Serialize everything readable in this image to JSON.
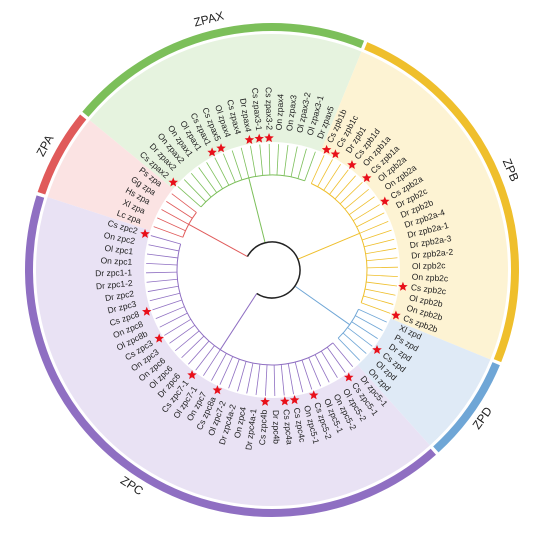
{
  "clades": [
    {
      "label": "ZPA",
      "color": "#e05a5a",
      "tint": "#fbe3e3",
      "leaves": [
        {
          "name": "Lc zpa",
          "star": false
        },
        {
          "name": "Xl zpa",
          "star": false
        },
        {
          "name": "Hs zpa",
          "star": false
        },
        {
          "name": "Gg zpa",
          "star": false
        },
        {
          "name": "Ps zpa",
          "star": false
        }
      ]
    },
    {
      "label": "ZPAX",
      "color": "#7cbf5a",
      "tint": "#e6f3df",
      "leaves": [
        {
          "name": "Cs zpax2",
          "star": true
        },
        {
          "name": "Dr zpax2",
          "star": false
        },
        {
          "name": "On zpax2",
          "star": false
        },
        {
          "name": "On zpax1",
          "star": false
        },
        {
          "name": "Ol zpax1",
          "star": false
        },
        {
          "name": "Cs zpax1",
          "star": true
        },
        {
          "name": "Cs zpax5",
          "star": true
        },
        {
          "name": "Ol zpax4",
          "star": false
        },
        {
          "name": "Cs zpax4",
          "star": false
        },
        {
          "name": "Dr zpax4",
          "star": true
        },
        {
          "name": "Cs zpax3-1",
          "star": true
        },
        {
          "name": "Cs zpax3-2",
          "star": true
        },
        {
          "name": "On zpax4",
          "star": false
        },
        {
          "name": "On zpax3",
          "star": false
        },
        {
          "name": "Ol zpax3-2",
          "star": false
        },
        {
          "name": "Ol zpax3-1",
          "star": false
        },
        {
          "name": "Dr zpax5",
          "star": false
        }
      ]
    },
    {
      "label": "ZPB",
      "color": "#efbf2c",
      "tint": "#fdf3d3",
      "leaves": [
        {
          "name": "Cs zpb1b",
          "star": true
        },
        {
          "name": "Cs zpb1c",
          "star": true
        },
        {
          "name": "Dr zpb1",
          "star": false
        },
        {
          "name": "Cs zpb1d",
          "star": true
        },
        {
          "name": "On zpb1a",
          "star": false
        },
        {
          "name": "Cs zpb1a",
          "star": true
        },
        {
          "name": "Ol zpb2a",
          "star": false
        },
        {
          "name": "On zpb2a",
          "star": false
        },
        {
          "name": "Cs zpb2a",
          "star": true
        },
        {
          "name": "Dr zpb2c",
          "star": false
        },
        {
          "name": "Dr zpb2b",
          "star": false
        },
        {
          "name": "Dr zpb2a-4",
          "star": false
        },
        {
          "name": "Dr zpb2a-1",
          "star": false
        },
        {
          "name": "Dr zpb2a-3",
          "star": false
        },
        {
          "name": "Dr zpb2a-2",
          "star": false
        },
        {
          "name": "Ol zpb2c",
          "star": false
        },
        {
          "name": "On zpb2c",
          "star": false
        },
        {
          "name": "Cs zpb2c",
          "star": true
        },
        {
          "name": "Ol zpb2b",
          "star": false
        },
        {
          "name": "On zpb2b",
          "star": false
        },
        {
          "name": "Cs zpb2b",
          "star": true
        }
      ]
    },
    {
      "label": "ZPD",
      "color": "#6fa6d6",
      "tint": "#dfeaf6",
      "leaves": [
        {
          "name": "Xl zpd",
          "star": false
        },
        {
          "name": "Ps zpd",
          "star": false
        },
        {
          "name": "Dr zpd",
          "star": false
        },
        {
          "name": "Cs zpd",
          "star": true
        },
        {
          "name": "Ol zpd",
          "star": false
        },
        {
          "name": "On zpd",
          "star": false
        }
      ]
    },
    {
      "label": "ZPC",
      "color": "#8f6fc2",
      "tint": "#e9e2f4",
      "leaves": [
        {
          "name": "Dr zpc5-1",
          "star": false
        },
        {
          "name": "Cs zpc5-1",
          "star": true
        },
        {
          "name": "Ol zpc5-2",
          "star": false
        },
        {
          "name": "On zpc5-2",
          "star": false
        },
        {
          "name": "Ol zpc5-1",
          "star": false
        },
        {
          "name": "Cs zpc5-2",
          "star": true
        },
        {
          "name": "On zpc5-1",
          "star": false
        },
        {
          "name": "Cs zpc4c",
          "star": true
        },
        {
          "name": "Cs zpc4a",
          "star": true
        },
        {
          "name": "Dr zpc4b",
          "star": false
        },
        {
          "name": "Cs zpc4b",
          "star": true
        },
        {
          "name": "Dr zpc4a-1",
          "star": false
        },
        {
          "name": "On zpc4",
          "star": false
        },
        {
          "name": "Dr zpc4a-2",
          "star": false
        },
        {
          "name": "Ol zpc7-2",
          "star": false
        },
        {
          "name": "Cs zpc8a",
          "star": true
        },
        {
          "name": "On zpc7",
          "star": false
        },
        {
          "name": "Ol zpc7-1",
          "star": false
        },
        {
          "name": "Cs zpc7-1",
          "star": true
        },
        {
          "name": "Dr zpc6",
          "star": false
        },
        {
          "name": "Ol zpc6",
          "star": false
        },
        {
          "name": "On zpc6",
          "star": false
        },
        {
          "name": "On zpc3",
          "star": false
        },
        {
          "name": "Cs zpc3",
          "star": true
        },
        {
          "name": "Ol zpc8b",
          "star": false
        },
        {
          "name": "On zpc8",
          "star": false
        },
        {
          "name": "Cs zpc8",
          "star": true
        },
        {
          "name": "Dr zpc3",
          "star": false
        },
        {
          "name": "Dr zpc2",
          "star": false
        },
        {
          "name": "Dr zpc1-2",
          "star": false
        },
        {
          "name": "Dr zpc1-1",
          "star": false
        },
        {
          "name": "On zpc1",
          "star": false
        },
        {
          "name": "Ol zpc1",
          "star": false
        },
        {
          "name": "On zpc2",
          "star": false
        },
        {
          "name": "Cs zpc2",
          "star": true
        }
      ]
    }
  ]
}
